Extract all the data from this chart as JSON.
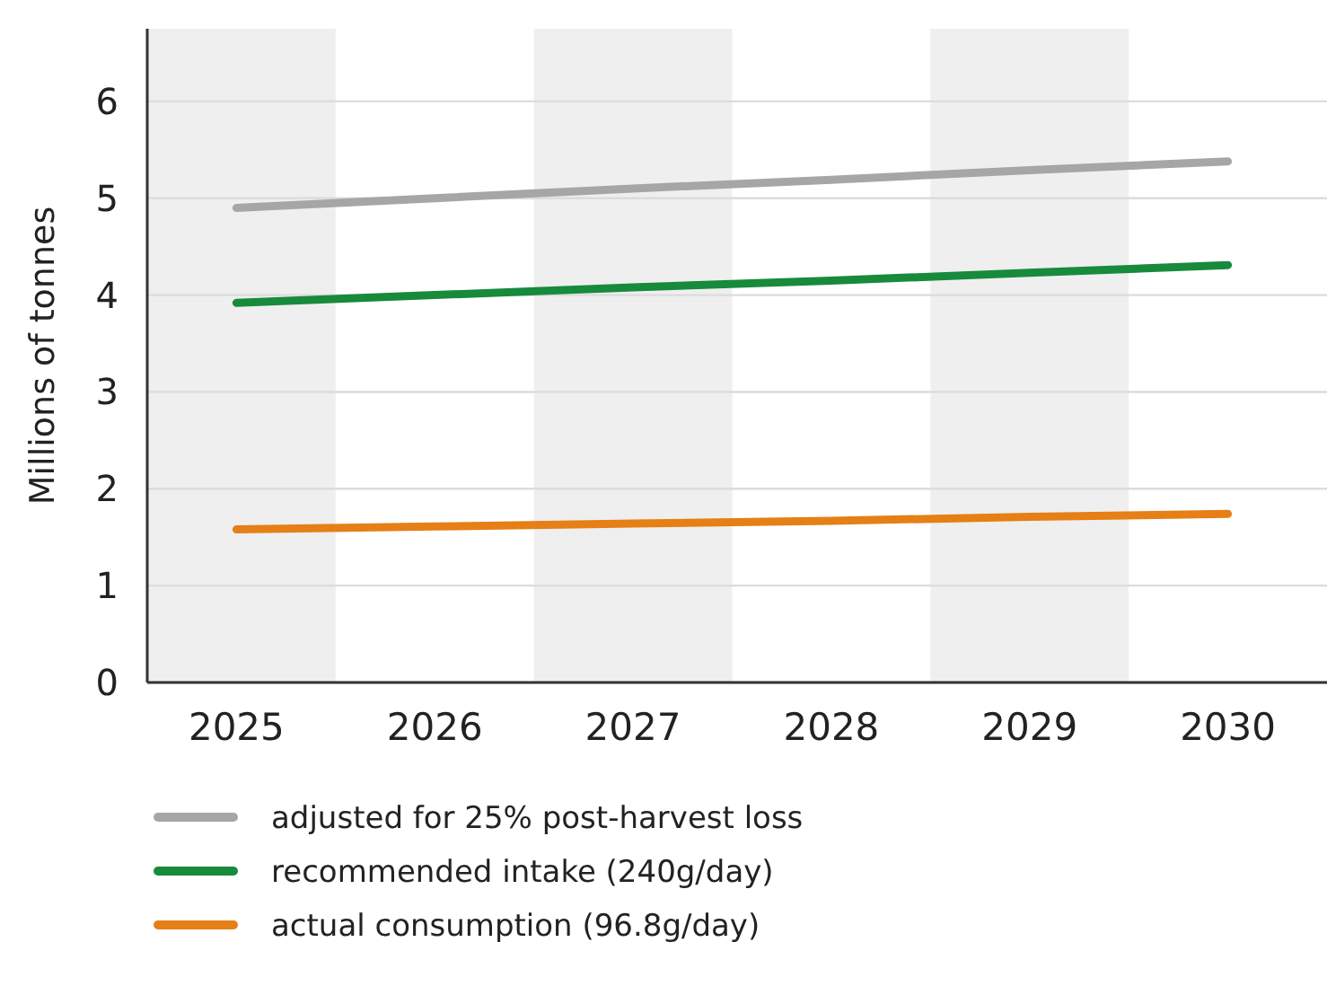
{
  "chart_data": {
    "type": "line",
    "ylabel": "Millions of tonnes",
    "x": [
      2025,
      2026,
      2027,
      2028,
      2029,
      2030
    ],
    "xlim": [
      2024.55,
      2030.5
    ],
    "xticks": [
      2025,
      2026,
      2027,
      2028,
      2029,
      2030
    ],
    "ylim": [
      0,
      6.75
    ],
    "yticks": [
      0,
      1,
      2,
      3,
      4,
      5,
      6
    ],
    "grid": "y",
    "legend": "bottom",
    "line_style": "solid",
    "marker": "none",
    "bands": [
      {
        "axis": "x",
        "from": 2024.55,
        "to": 2025.5,
        "color": "#efefef"
      },
      {
        "axis": "x",
        "from": 2026.5,
        "to": 2027.5,
        "color": "#efefef"
      },
      {
        "axis": "x",
        "from": 2028.5,
        "to": 2029.5,
        "color": "#efefef"
      }
    ],
    "series": [
      {
        "name": "adjusted for 25% post-harvest loss",
        "color": "#a6a6a6",
        "values": [
          4.9,
          5.0,
          5.1,
          5.19,
          5.29,
          5.38
        ]
      },
      {
        "name": "recommended intake (240g/day)",
        "color": "#178a3c",
        "values": [
          3.92,
          4.0,
          4.08,
          4.15,
          4.23,
          4.31
        ]
      },
      {
        "name": "actual consumption (96.8g/day)",
        "color": "#e57f16",
        "values": [
          1.58,
          1.61,
          1.64,
          1.67,
          1.71,
          1.74
        ]
      }
    ]
  }
}
